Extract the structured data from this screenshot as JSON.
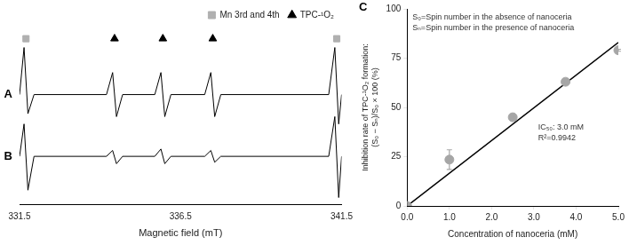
{
  "chart_data": [
    {
      "type": "line",
      "xlabel": "Magnetic field (mT)",
      "xlim": [
        331.5,
        341.5
      ],
      "xticks": [
        331.5,
        336.5,
        341.5
      ],
      "ylim": [
        0,
        1.2
      ],
      "yticks": [],
      "tick_labels": "x",
      "grid": false,
      "legend": "top right",
      "x": [
        331.5,
        331.64,
        331.76,
        331.95,
        334.2,
        334.39,
        334.51,
        334.7,
        335.7,
        335.89,
        336.01,
        336.2,
        337.25,
        337.44,
        337.56,
        337.75,
        341.1,
        341.29,
        341.41,
        341.5
      ],
      "series": [
        {
          "name": "A",
          "color": "#000000",
          "line_style": "solid",
          "values": [
            0.75,
            1.07,
            0.62,
            0.75,
            0.75,
            0.9,
            0.6,
            0.75,
            0.75,
            0.9,
            0.6,
            0.75,
            0.75,
            0.9,
            0.6,
            0.75,
            0.75,
            1.07,
            0.55,
            0.75
          ]
        },
        {
          "name": "B",
          "color": "#000000",
          "line_style": "solid",
          "values": [
            0.33,
            0.55,
            0.1,
            0.33,
            0.33,
            0.37,
            0.28,
            0.33,
            0.33,
            0.38,
            0.28,
            0.33,
            0.33,
            0.37,
            0.29,
            0.33,
            0.33,
            0.6,
            0.05,
            0.33
          ]
        },
        {
          "name": "Mn 3rd and 4th",
          "type": "scatter",
          "marker": "square",
          "color": "#b0b0b0",
          "x": [
            331.7,
            341.35
          ],
          "values": [
            1.13,
            1.13
          ]
        },
        {
          "name": "TPC-¹O₂",
          "type": "scatter",
          "marker": "triangle",
          "color": "#000000",
          "x": [
            334.45,
            335.95,
            337.5
          ],
          "values": [
            1.13,
            1.13,
            1.13
          ]
        }
      ]
    },
    {
      "type": "scatter",
      "title": "C",
      "xlabel": "Concentration of nanoceria (mM)",
      "ylabel": [
        "Inhibition rate of TPC-¹O₂ formation:",
        "(S₀ − Sₙ)/S₀ × 100 (%)"
      ],
      "xlim": [
        0,
        5
      ],
      "xticks": [
        {
          "value": 0,
          "label": "0.0"
        },
        {
          "value": 1,
          "label": "1.0"
        },
        {
          "value": 2,
          "label": "2.0"
        },
        {
          "value": 3,
          "label": "3.0"
        },
        {
          "value": 4,
          "label": "4.0"
        },
        {
          "value": 5,
          "label": "5.0"
        }
      ],
      "ylim": [
        0,
        100
      ],
      "yticks": [
        0,
        25,
        50,
        75,
        100
      ],
      "grid": false,
      "annotations": [
        "S₀=Spin number in the absence of nanoceria",
        "Sₙ=Spin number in the presence of nanoceria",
        "IC₅₀: 3.0 mM",
        "R²=0.9942"
      ],
      "series": [
        {
          "type": "scatter",
          "marker": "circle",
          "color": "#a6a6a6",
          "x": [
            0,
            1,
            2.5,
            3.75,
            5
          ],
          "values": [
            0,
            23.5,
            45,
            63,
            79
          ],
          "errors": [
            0,
            5,
            1.5,
            1.5,
            0.5
          ]
        },
        {
          "type": "line",
          "line_style": "solid",
          "color": "#000000",
          "x": [
            0,
            5
          ],
          "values": [
            0,
            83
          ]
        }
      ]
    }
  ]
}
